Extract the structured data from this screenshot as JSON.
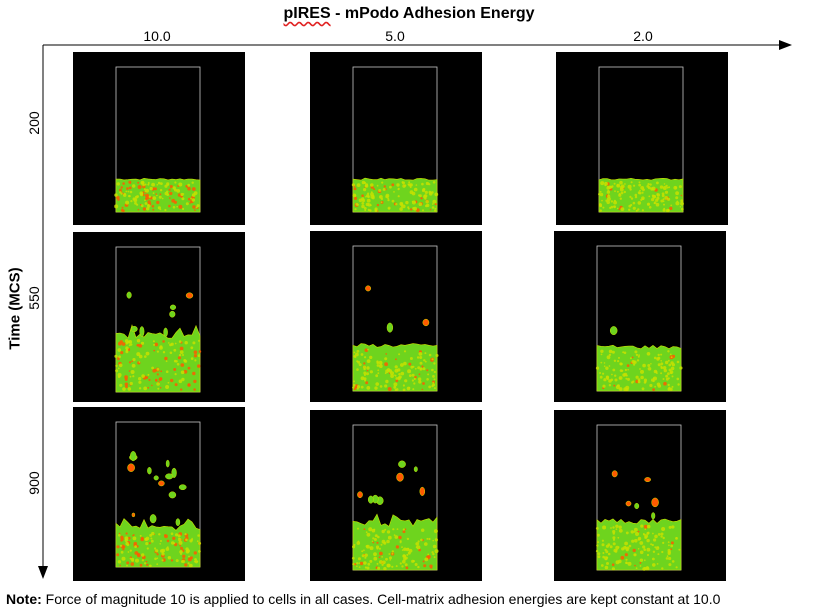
{
  "title_parts": {
    "emph": "pIRES",
    "rest": " - mPodo Adhesion Energy"
  },
  "x_axis": {
    "ticks": [
      "10.0",
      "5.0",
      "2.0"
    ]
  },
  "y_axis": {
    "title": "Time (MCS)",
    "ticks": [
      "200",
      "550",
      "900"
    ]
  },
  "note": {
    "label": "Note:",
    "text": " Force of magnitude 10 is applied to cells in all cases. Cell-matrix adhesion energies are kept constant at 10.0"
  },
  "colors": {
    "cell_fill": "#6ed41e",
    "cell_edge": "#c8e000",
    "cell_hot": "#ff5a00",
    "panel_bg": "#000000",
    "frame": "#c8c8c8"
  }
}
